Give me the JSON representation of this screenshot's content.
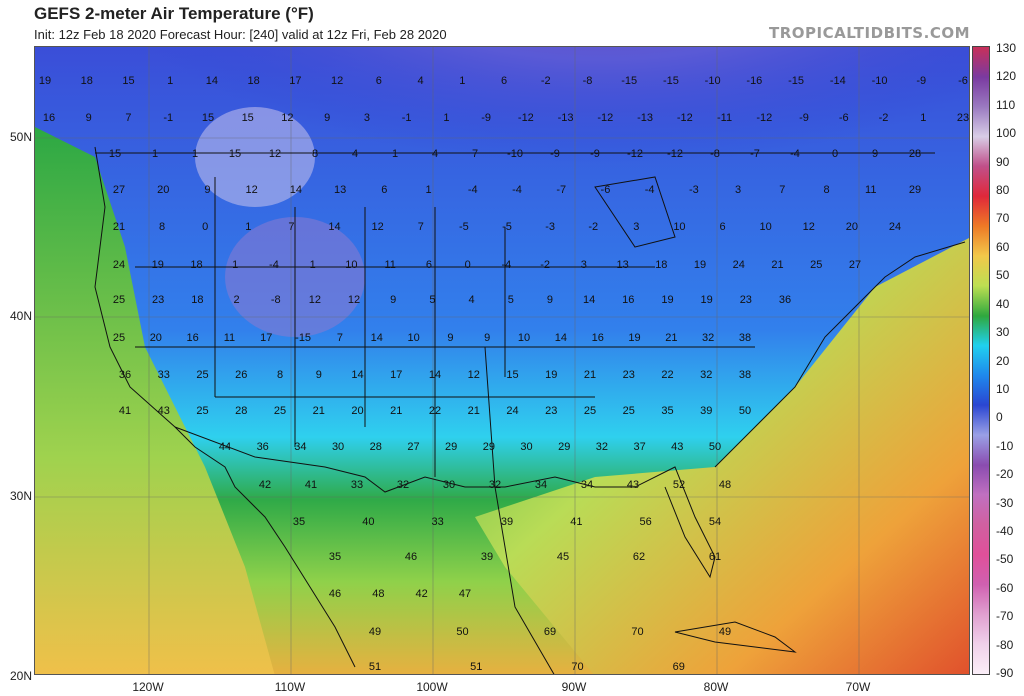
{
  "header": {
    "title": "GEFS 2-meter Air Temperature (°F)",
    "subtitle": "Init: 12z Feb 18 2020   Forecast Hour: [240]   valid at 12z Fri, Feb 28 2020",
    "brand": "TROPICALTIDBITS.COM"
  },
  "latitude_labels": [
    "50N",
    "40N",
    "30N",
    "20N"
  ],
  "longitude_labels": [
    "120W",
    "110W",
    "100W",
    "90W",
    "80W",
    "70W"
  ],
  "colorbar": {
    "ticks": [
      "130",
      "120",
      "110",
      "100",
      "90",
      "80",
      "70",
      "60",
      "50",
      "40",
      "30",
      "20",
      "10",
      "0",
      "-10",
      "-20",
      "-30",
      "-40",
      "-50",
      "-60",
      "-70",
      "-80",
      "-90"
    ],
    "colors": [
      "#c8305a",
      "#7a3aa0",
      "#9a79c0",
      "#d8cde6",
      "#c0508a",
      "#e0283a",
      "#ee7a26",
      "#f2c84a",
      "#bddf52",
      "#2fa83e",
      "#20d0ee",
      "#1f88ec",
      "#2a46d2",
      "#9aa0e6",
      "#8a4cb0",
      "#c070c0",
      "#d060a0",
      "#e0509a",
      "#d060b0",
      "#e0a0d0",
      "#f0d0ea",
      "#fbeef8"
    ]
  },
  "temps": [
    [
      "19"
    ],
    [
      "18"
    ],
    [
      "15"
    ],
    [
      "1"
    ],
    [
      "14"
    ],
    [
      "18"
    ],
    [
      "17"
    ],
    [
      "12"
    ],
    [
      "6"
    ],
    [
      "4"
    ],
    [
      "1"
    ],
    [
      "6"
    ],
    [
      "-2"
    ],
    [
      "-8"
    ],
    [
      "-15"
    ],
    [
      "-15"
    ],
    [
      "-10"
    ],
    [
      "-16"
    ],
    [
      "-15"
    ],
    [
      "-14"
    ],
    [
      "-10"
    ],
    [
      "-9"
    ],
    [
      "-6"
    ],
    [
      "16"
    ],
    [
      "9"
    ],
    [
      "7"
    ],
    [
      "-1"
    ],
    [
      "15"
    ],
    [
      "15"
    ],
    [
      "12"
    ],
    [
      "9"
    ],
    [
      "3"
    ],
    [
      "-1"
    ],
    [
      "1"
    ],
    [
      "-9"
    ],
    [
      "-12"
    ],
    [
      "-13"
    ],
    [
      "-12"
    ],
    [
      "-13"
    ],
    [
      "-12"
    ],
    [
      "-11"
    ],
    [
      "-12"
    ],
    [
      "-9"
    ],
    [
      "-6"
    ],
    [
      "-2"
    ],
    [
      "1"
    ],
    [
      "23"
    ],
    [
      "15"
    ],
    [
      "1"
    ],
    [
      "1"
    ],
    [
      "15"
    ],
    [
      "12"
    ],
    [
      "8"
    ],
    [
      "4"
    ],
    [
      "1"
    ],
    [
      "4"
    ],
    [
      "7"
    ],
    [
      "-10"
    ],
    [
      "-9"
    ],
    [
      "-9"
    ],
    [
      "-12"
    ],
    [
      "-12"
    ],
    [
      "-8"
    ],
    [
      "-7"
    ],
    [
      "-4"
    ],
    [
      "0"
    ],
    [
      "9"
    ],
    [
      "28"
    ],
    [
      "27"
    ],
    [
      "20"
    ],
    [
      "9"
    ],
    [
      "12"
    ],
    [
      "14"
    ],
    [
      "13"
    ],
    [
      "6"
    ],
    [
      "1"
    ],
    [
      "-4"
    ],
    [
      "-4"
    ],
    [
      "-7"
    ],
    [
      "-6"
    ],
    [
      "-4"
    ],
    [
      "-3"
    ],
    [
      "3"
    ],
    [
      "7"
    ],
    [
      "8"
    ],
    [
      "11"
    ],
    [
      "29"
    ],
    [
      "21"
    ],
    [
      "8"
    ],
    [
      "0"
    ],
    [
      "1"
    ],
    [
      "7"
    ],
    [
      "14"
    ],
    [
      "12"
    ],
    [
      "7"
    ],
    [
      "-5"
    ],
    [
      "-5"
    ],
    [
      "-3"
    ],
    [
      "-2"
    ],
    [
      "3"
    ],
    [
      "10"
    ],
    [
      "6"
    ],
    [
      "10"
    ],
    [
      "12"
    ],
    [
      "20"
    ],
    [
      "24"
    ],
    [
      "24"
    ],
    [
      "19"
    ],
    [
      "18"
    ],
    [
      "1"
    ],
    [
      "-4"
    ],
    [
      "1"
    ],
    [
      "10"
    ],
    [
      "11"
    ],
    [
      "6"
    ],
    [
      "0"
    ],
    [
      "-4"
    ],
    [
      "-2"
    ],
    [
      "3"
    ],
    [
      "13"
    ],
    [
      "18"
    ],
    [
      "19"
    ],
    [
      "24"
    ],
    [
      "21"
    ],
    [
      "25"
    ],
    [
      "27"
    ],
    [
      "25"
    ],
    [
      "23"
    ],
    [
      "18"
    ],
    [
      "2"
    ],
    [
      "-8"
    ],
    [
      "12"
    ],
    [
      "12"
    ],
    [
      "9"
    ],
    [
      "5"
    ],
    [
      "4"
    ],
    [
      "5"
    ],
    [
      "9"
    ],
    [
      "14"
    ],
    [
      "16"
    ],
    [
      "19"
    ],
    [
      "19"
    ],
    [
      "23"
    ],
    [
      "36"
    ],
    [
      "25"
    ],
    [
      "20"
    ],
    [
      "16"
    ],
    [
      "11"
    ],
    [
      "17"
    ],
    [
      "-15"
    ],
    [
      "7"
    ],
    [
      "14"
    ],
    [
      "10"
    ],
    [
      "9"
    ],
    [
      "9"
    ],
    [
      "10"
    ],
    [
      "14"
    ],
    [
      "16"
    ],
    [
      "19"
    ],
    [
      "21"
    ],
    [
      "32"
    ],
    [
      "38"
    ],
    [
      "36"
    ],
    [
      "33"
    ],
    [
      "25"
    ],
    [
      "26"
    ],
    [
      "8"
    ],
    [
      "9"
    ],
    [
      "14"
    ],
    [
      "17"
    ],
    [
      "14"
    ],
    [
      "12"
    ],
    [
      "15"
    ],
    [
      "19"
    ],
    [
      "21"
    ],
    [
      "23"
    ],
    [
      "22"
    ],
    [
      "32"
    ],
    [
      "38"
    ],
    [
      "41"
    ],
    [
      "43"
    ],
    [
      "25"
    ],
    [
      "28"
    ],
    [
      "25"
    ],
    [
      "21"
    ],
    [
      "20"
    ],
    [
      "21"
    ],
    [
      "22"
    ],
    [
      "21"
    ],
    [
      "24"
    ],
    [
      "23"
    ],
    [
      "25"
    ],
    [
      "25"
    ],
    [
      "35"
    ],
    [
      "39"
    ],
    [
      "50"
    ],
    [
      "44"
    ],
    [
      "36"
    ],
    [
      "34"
    ],
    [
      "30"
    ],
    [
      "28"
    ],
    [
      "27"
    ],
    [
      "29"
    ],
    [
      "29"
    ],
    [
      "30"
    ],
    [
      "29"
    ],
    [
      "32"
    ],
    [
      "37"
    ],
    [
      "43"
    ],
    [
      "50"
    ],
    [
      "42"
    ],
    [
      "41"
    ],
    [
      "33"
    ],
    [
      "32"
    ],
    [
      "30"
    ],
    [
      "32"
    ],
    [
      "34"
    ],
    [
      "34"
    ],
    [
      "43"
    ],
    [
      "52"
    ],
    [
      "48"
    ],
    [
      "35"
    ],
    [
      "40"
    ],
    [
      "33"
    ],
    [
      "39"
    ],
    [
      "41"
    ],
    [
      "56"
    ],
    [
      "54"
    ],
    [
      "35"
    ],
    [
      "46"
    ],
    [
      "39"
    ],
    [
      "45"
    ],
    [
      "62"
    ],
    [
      "61"
    ],
    [
      "46"
    ],
    [
      "48"
    ],
    [
      "42"
    ],
    [
      "47"
    ],
    [
      "49"
    ],
    [
      "50"
    ],
    [
      "69"
    ],
    [
      "70"
    ],
    [
      "49"
    ],
    [
      "51"
    ],
    [
      "51"
    ],
    [
      "70"
    ],
    [
      "69"
    ]
  ]
}
